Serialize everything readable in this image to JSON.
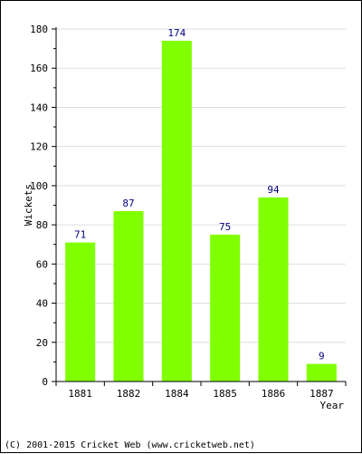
{
  "chart_data": {
    "type": "bar",
    "categories": [
      "1881",
      "1882",
      "1884",
      "1885",
      "1886",
      "1887"
    ],
    "values": [
      71,
      87,
      174,
      75,
      94,
      9
    ],
    "title": "",
    "xlabel": "Year",
    "ylabel": "Wickets",
    "ylim": [
      0,
      180
    ],
    "yticks": [
      0,
      20,
      40,
      60,
      80,
      100,
      120,
      140,
      160,
      180
    ],
    "grid": true,
    "bar_color": "#80ff00",
    "value_label_color": "#000080"
  },
  "footer": "(C) 2001-2015 Cricket Web (www.cricketweb.net)"
}
